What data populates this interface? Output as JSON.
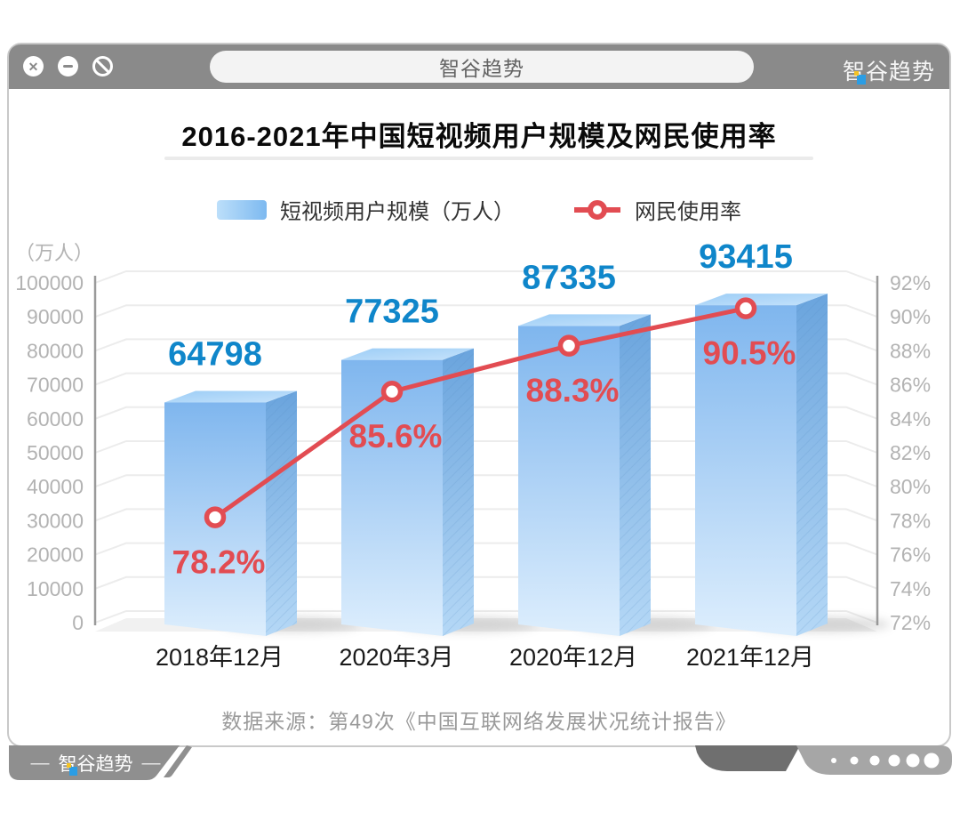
{
  "window": {
    "titlebar": {
      "title": "智谷趋势",
      "logo_first": "智",
      "logo_rest": "谷趋势",
      "controls": [
        "close",
        "minimize",
        "block"
      ]
    },
    "footer": {
      "dash": "—",
      "logo_first": "智",
      "logo_rest": "谷趋势",
      "dots_count": 6
    }
  },
  "legend": {
    "bar_label": "短视频用户规模（万人）",
    "line_label": "网民使用率"
  },
  "chart_data": {
    "type": "bar",
    "combo": "bar+line",
    "title": "2016-2021年中国短视频用户规模及网民使用率",
    "categories": [
      "2018年12月",
      "2020年3月",
      "2020年12月",
      "2021年12月"
    ],
    "series": [
      {
        "name": "短视频用户规模（万人）",
        "type": "bar",
        "axis": "left",
        "values": [
          64798,
          77325,
          87335,
          93415
        ],
        "value_labels": [
          "64798",
          "77325",
          "87335",
          "93415"
        ]
      },
      {
        "name": "网民使用率",
        "type": "line",
        "axis": "right",
        "values": [
          78.2,
          85.6,
          88.3,
          90.5
        ],
        "point_labels": [
          "78.2%",
          "85.6%",
          "88.3%",
          "90.5%"
        ]
      }
    ],
    "left_axis": {
      "unit_label": "（万人）",
      "min": 0,
      "max": 100000,
      "step": 10000,
      "tick_labels": [
        "100000",
        "90000",
        "80000",
        "70000",
        "60000",
        "50000",
        "40000",
        "30000",
        "20000",
        "10000",
        "0"
      ]
    },
    "right_axis": {
      "min": 72,
      "max": 92,
      "step": 2,
      "tick_labels": [
        "92%",
        "90%",
        "88%",
        "86%",
        "84%",
        "82%",
        "80%",
        "78%",
        "76%",
        "74%",
        "72%"
      ]
    },
    "grid": true,
    "legend_position": "top",
    "source": "数据来源：第49次《中国互联网络发展状况统计报告》",
    "colors": {
      "bar_value_label": "#0f86ca",
      "line": "#e24c52",
      "bar_front_top": "#7fb6ee",
      "bar_front_bottom": "#ddeefd",
      "bar_top_face_a": "#9ccdf6",
      "bar_top_face_b": "#c5e2fb",
      "bar_side_top": "#6aa4dd",
      "bar_side_bottom": "#b5d8f6",
      "axis_line": "#9a9a9a",
      "tick_text": "#b3b3b3",
      "grid_line": "#ececec",
      "floor": "#f1f1f1",
      "x_label": "#1a1a1a",
      "chrome_gray": "#8a8a8a"
    }
  }
}
